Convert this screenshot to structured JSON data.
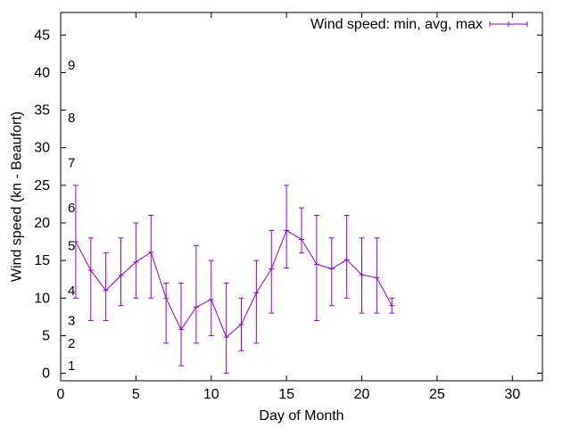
{
  "chart_data": {
    "type": "line",
    "title": "",
    "xlabel": "Day of Month",
    "ylabel": "Wind speed (kn - Beaufort)",
    "xlim": [
      0,
      32
    ],
    "ylim": [
      -1,
      48
    ],
    "xticks": [
      0,
      5,
      10,
      15,
      20,
      25,
      30
    ],
    "yticks": [
      0,
      5,
      10,
      15,
      20,
      25,
      30,
      35,
      40,
      45
    ],
    "grid": false,
    "legend_position": "top-right",
    "series": [
      {
        "name": "Wind speed: min, avg, max",
        "color": "#9400d3",
        "points": [
          {
            "x": 1,
            "avg": 17.5,
            "min": 10,
            "max": 25
          },
          {
            "x": 2,
            "avg": 13.7,
            "min": 7,
            "max": 18
          },
          {
            "x": 3,
            "avg": 11,
            "min": 7,
            "max": 16
          },
          {
            "x": 4,
            "avg": 13,
            "min": 9,
            "max": 18
          },
          {
            "x": 5,
            "avg": 14.8,
            "min": 10,
            "max": 20
          },
          {
            "x": 6,
            "avg": 16.1,
            "min": 10,
            "max": 21
          },
          {
            "x": 7,
            "avg": 10,
            "min": 4,
            "max": 12
          },
          {
            "x": 8,
            "avg": 5.8,
            "min": 1,
            "max": 12
          },
          {
            "x": 9,
            "avg": 8.8,
            "min": 4,
            "max": 17
          },
          {
            "x": 10,
            "avg": 9.8,
            "min": 5,
            "max": 15
          },
          {
            "x": 11,
            "avg": 4.8,
            "min": 0,
            "max": 12
          },
          {
            "x": 12,
            "avg": 6.5,
            "min": 3,
            "max": 10
          },
          {
            "x": 13,
            "avg": 10.7,
            "min": 4,
            "max": 15
          },
          {
            "x": 14,
            "avg": 13.9,
            "min": 8,
            "max": 19
          },
          {
            "x": 15,
            "avg": 19,
            "min": 14,
            "max": 25
          },
          {
            "x": 16,
            "avg": 17.8,
            "min": 16,
            "max": 22
          },
          {
            "x": 17,
            "avg": 14.5,
            "min": 7,
            "max": 21
          },
          {
            "x": 18,
            "avg": 13.9,
            "min": 9,
            "max": 18
          },
          {
            "x": 19,
            "avg": 15.1,
            "min": 10,
            "max": 21
          },
          {
            "x": 20,
            "avg": 13.1,
            "min": 8,
            "max": 18
          },
          {
            "x": 21,
            "avg": 12.7,
            "min": 8,
            "max": 18
          },
          {
            "x": 22,
            "avg": 9,
            "min": 8,
            "max": 10
          }
        ]
      }
    ],
    "beaufort_labels": [
      {
        "label": "1",
        "y": 1
      },
      {
        "label": "2",
        "y": 4
      },
      {
        "label": "3",
        "y": 7
      },
      {
        "label": "4",
        "y": 11
      },
      {
        "label": "5",
        "y": 17
      },
      {
        "label": "6",
        "y": 22
      },
      {
        "label": "7",
        "y": 28
      },
      {
        "label": "8",
        "y": 34
      },
      {
        "label": "9",
        "y": 41
      }
    ]
  }
}
